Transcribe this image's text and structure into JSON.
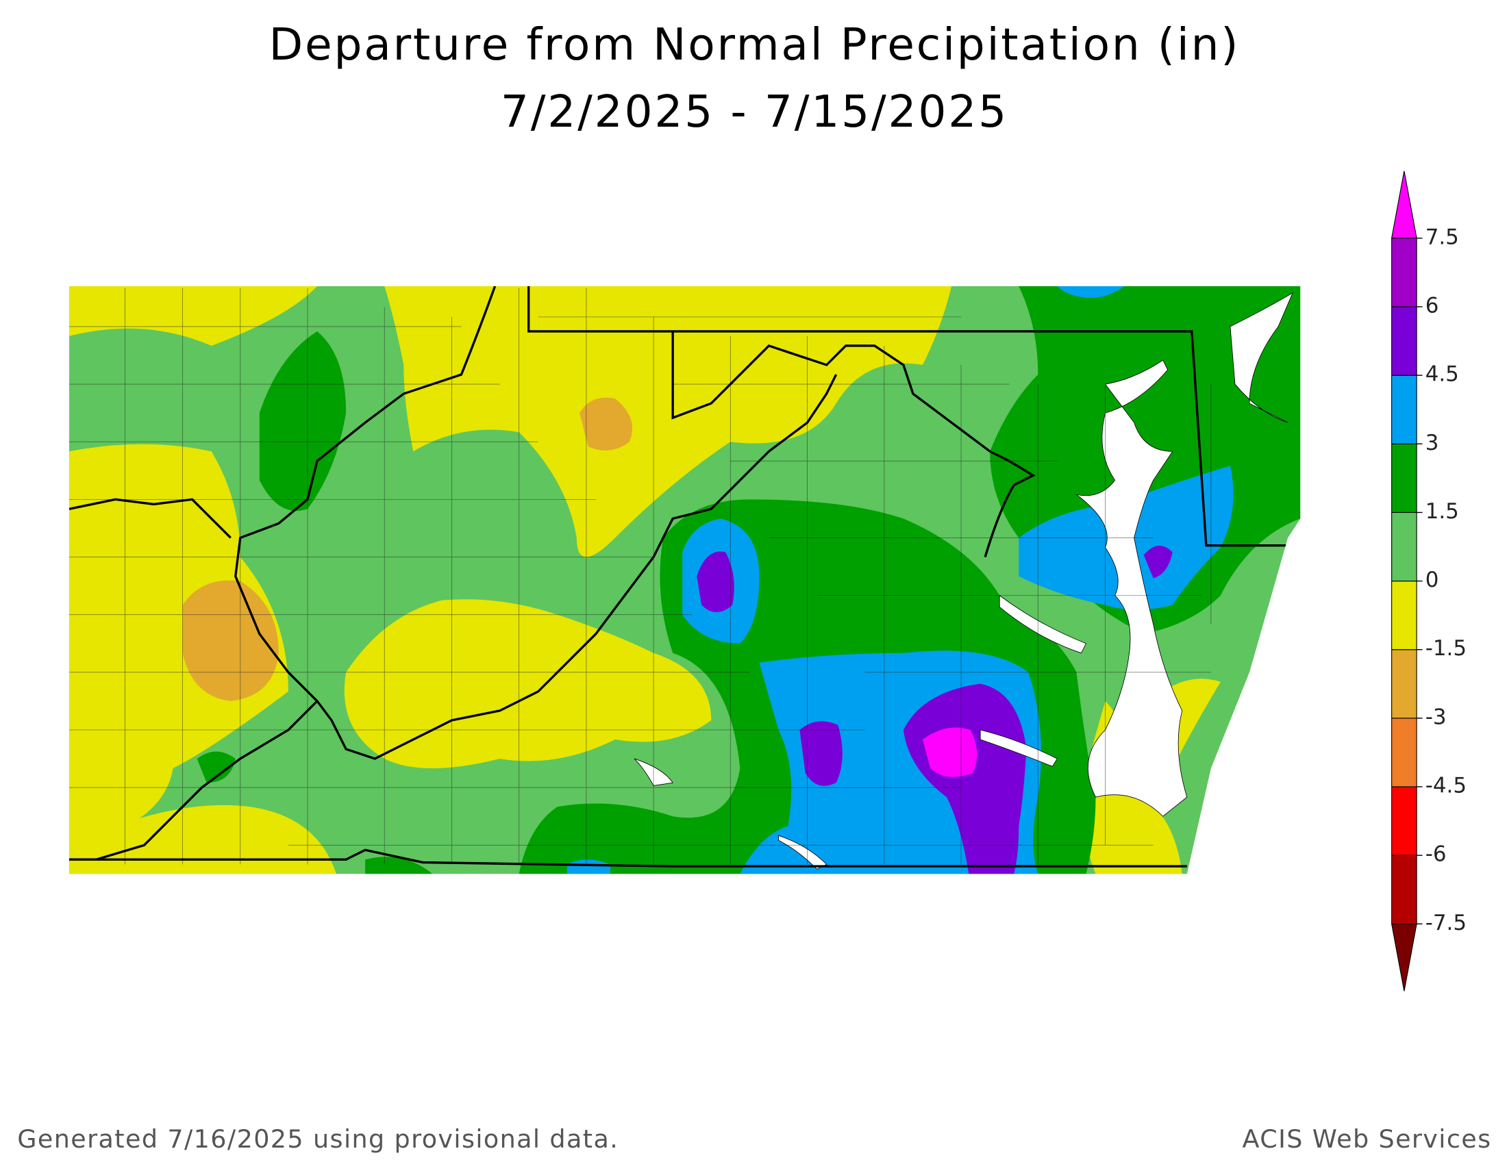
{
  "title": [
    "Departure from Normal Precipitation (in)",
    "7/2/2025 - 7/15/2025"
  ],
  "colorbar": {
    "ticks": [
      -7.5,
      -6,
      -4.5,
      -3,
      -1.5,
      0,
      1.5,
      3,
      4.5,
      6,
      7.5
    ],
    "colors": [
      "#7a0000",
      "#b50000",
      "#ff0000",
      "#f07d28",
      "#e2a92e",
      "#e6e600",
      "#5fc55f",
      "#00a000",
      "#00a0f0",
      "#7a00d8",
      "#a000c8",
      "#ff00ff"
    ]
  },
  "footer": {
    "left": "Generated 7/16/2025  using provisional data.",
    "right": "ACIS Web Services"
  }
}
